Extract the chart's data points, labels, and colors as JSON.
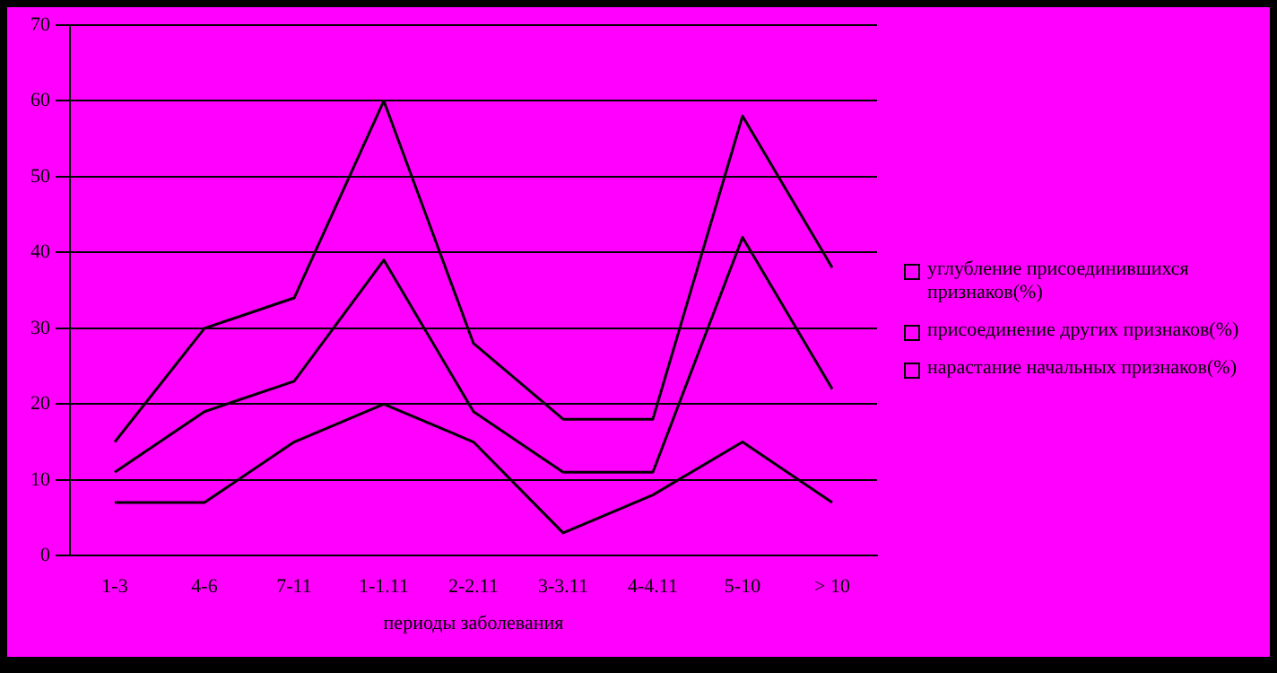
{
  "chart_data": {
    "type": "line",
    "xlabel": "периоды заболевания",
    "categories": [
      "1-3",
      "4-6",
      "7-11",
      "1-1.11",
      "2-2.11",
      "3-3.11",
      "4-4.11",
      "5-10",
      "> 10"
    ],
    "series": [
      {
        "name": "углубление присоединившихся признаков(%)",
        "color": "#000000",
        "values": [
          15,
          30,
          34,
          60,
          28,
          18,
          18,
          58,
          38
        ]
      },
      {
        "name": "присоединение других признаков(%)",
        "color": "#000000",
        "values": [
          11,
          19,
          23,
          39,
          19,
          11,
          11,
          42,
          22
        ]
      },
      {
        "name": "нарастание начальных признаков(%)",
        "color": "#000000",
        "values": [
          7,
          7,
          15,
          20,
          15,
          3,
          8,
          15,
          7
        ]
      }
    ],
    "ylim": [
      0,
      70
    ],
    "yticks": [
      0,
      10,
      20,
      30,
      40,
      50,
      60,
      70
    ],
    "grid": "y",
    "legend": "right",
    "marker": "none"
  }
}
